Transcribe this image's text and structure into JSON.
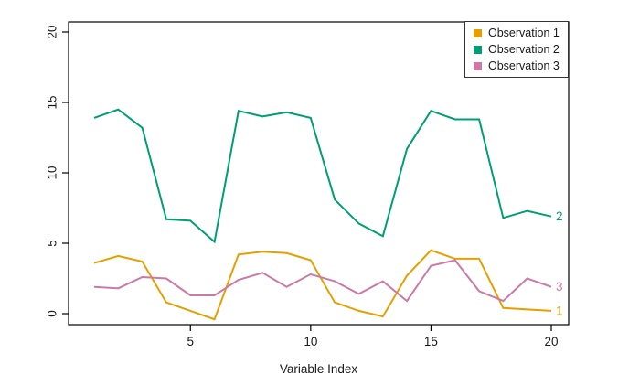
{
  "chart_data": {
    "type": "line",
    "title": "",
    "xlabel": "Variable Index",
    "ylabel": "",
    "x": [
      1,
      2,
      3,
      4,
      5,
      6,
      7,
      8,
      9,
      10,
      11,
      12,
      13,
      14,
      15,
      16,
      17,
      18,
      19,
      20
    ],
    "x_ticks": [
      5,
      10,
      15,
      20
    ],
    "y_ticks": [
      0,
      5,
      10,
      15,
      20
    ],
    "xlim": [
      0,
      20.8
    ],
    "ylim": [
      -0.8,
      20.7
    ],
    "grid": false,
    "legend_position": "top-right-inside",
    "legend_entries": [
      "Observation 1",
      "Observation 2",
      "Observation 3"
    ],
    "series": [
      {
        "name": "Observation 1",
        "color": "#E69F00",
        "end_label": "1",
        "values": [
          3.6,
          4.1,
          3.7,
          0.8,
          0.2,
          -0.4,
          4.2,
          4.4,
          4.3,
          3.8,
          0.8,
          0.2,
          -0.2,
          2.7,
          4.5,
          3.9,
          3.9,
          0.4,
          0.3,
          0.2
        ]
      },
      {
        "name": "Observation 2",
        "color": "#009E73",
        "end_label": "2",
        "values": [
          13.9,
          14.5,
          13.2,
          6.7,
          6.6,
          5.1,
          14.4,
          14.0,
          14.3,
          13.9,
          8.1,
          6.4,
          5.5,
          11.7,
          14.4,
          13.8,
          13.8,
          6.8,
          7.3,
          6.9
        ]
      },
      {
        "name": "Observation 3",
        "color": "#CC79A7",
        "end_label": "3",
        "values": [
          1.9,
          1.8,
          2.6,
          2.5,
          1.3,
          1.3,
          2.4,
          2.9,
          1.9,
          2.8,
          2.3,
          1.4,
          2.3,
          0.9,
          3.4,
          3.8,
          1.6,
          0.9,
          2.5,
          1.9
        ]
      }
    ]
  }
}
